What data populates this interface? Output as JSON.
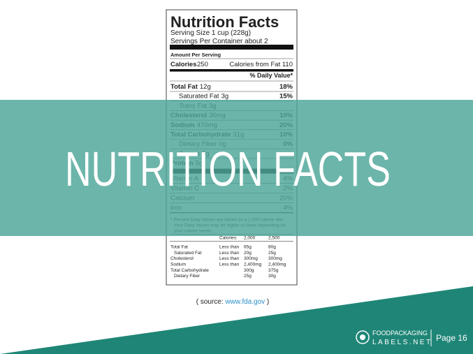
{
  "label": {
    "title": "Nutrition Facts",
    "serving_size": "Serving Size 1 cup (228g)",
    "servings": "Servings Per Container about 2",
    "amount_per_serving": "Amount Per Serving",
    "calories_label": "Calories",
    "calories_value": "250",
    "calories_from_fat": "Calories from Fat 110",
    "daily_value_header": "% Daily Value*",
    "nutrients": [
      {
        "name": "Total Fat",
        "amount": "12g",
        "dv": "18%"
      },
      {
        "name": "Saturated Fat",
        "amount": "3g",
        "dv": "15%"
      },
      {
        "name": "Trans",
        "amount": "Fat 3g"
      },
      {
        "name": "Cholesterol",
        "amount": "30mg",
        "dv": "10%"
      },
      {
        "name": "Sodium",
        "amount": "470mg",
        "dv": "20%"
      },
      {
        "name": "Total Carbohydrate",
        "amount": "31g",
        "dv": "10%"
      },
      {
        "name": "Dietary Fiber",
        "amount": "0g",
        "dv": "0%"
      },
      {
        "name": "Sugars",
        "amount": "5g"
      },
      {
        "name": "Protein",
        "amount": "5g"
      }
    ],
    "vitamins": [
      {
        "name": "Vitamin A",
        "dv": "4%"
      },
      {
        "name": "Vitamin C",
        "dv": "2%"
      },
      {
        "name": "Calcium",
        "dv": "20%"
      },
      {
        "name": "Iron",
        "dv": "4%"
      }
    ],
    "footnote": [
      "* Percent Daily Values are based on a 2,000 calorie diet.",
      "Your Daily Values may be higher or lower depending on",
      "your calorie needs:"
    ],
    "table_header": [
      "Calories:",
      "2,000",
      "2,500"
    ],
    "table_rows": [
      {
        "name": "Total Fat",
        "qualifier": "Less than",
        "low": "65g",
        "high": "80g"
      },
      {
        "name": "Saturated Fat",
        "qualifier": "Less than",
        "low": "20g",
        "high": "25g"
      },
      {
        "name": "Cholesterol",
        "qualifier": "Less than",
        "low": "300mg",
        "high": "300mg"
      },
      {
        "name": "Sodium",
        "qualifier": "Less than",
        "low": "2,400mg",
        "high": "2,400mg"
      },
      {
        "name": "Total Carbohydrate",
        "low": "300g",
        "high": "375g"
      },
      {
        "name": "Dietary Fiber",
        "low": "25g",
        "high": "30g"
      }
    ]
  },
  "overlay_title": "NUTRITION FACTS",
  "source_prefix": "( source: ",
  "source_link": "www.fda.gov",
  "source_suffix": " )",
  "logo": {
    "line1": "FOODPACKAGING",
    "line2": "LABELS.NET"
  },
  "page": "Page 16"
}
